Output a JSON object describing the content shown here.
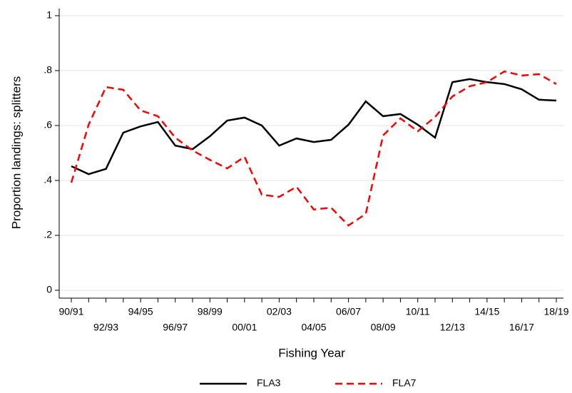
{
  "chart_data": {
    "type": "line",
    "x_label": "Fishing Year",
    "y_label": "Proportion landings: splitters",
    "categories": [
      "90/91",
      null,
      "92/93",
      null,
      "94/95",
      null,
      "96/97",
      null,
      "98/99",
      null,
      "00/01",
      null,
      "02/03",
      null,
      "04/05",
      null,
      "06/07",
      null,
      "08/09",
      null,
      "10/11",
      null,
      "12/13",
      null,
      "14/15",
      null,
      "16/17",
      null,
      "18/19"
    ],
    "series": [
      {
        "name": "FLA3",
        "color": "#000000",
        "line_style": "solid",
        "values": [
          0.452,
          0.423,
          0.442,
          0.574,
          0.597,
          0.613,
          0.527,
          0.514,
          0.561,
          0.618,
          0.629,
          0.6,
          0.527,
          0.553,
          0.54,
          0.548,
          0.603,
          0.688,
          0.634,
          0.642,
          0.603,
          0.556,
          0.758,
          0.769,
          0.758,
          0.751,
          0.732,
          0.694,
          0.691
        ]
      },
      {
        "name": "FLA7",
        "color": "#ff0000",
        "line_style": "dashed",
        "values": [
          0.392,
          0.603,
          0.74,
          0.73,
          0.655,
          0.634,
          0.556,
          0.509,
          0.475,
          0.444,
          0.486,
          0.348,
          0.34,
          0.377,
          0.294,
          0.301,
          0.236,
          0.278,
          0.564,
          0.626,
          0.579,
          0.631,
          0.706,
          0.743,
          0.758,
          0.797,
          0.782,
          0.787,
          0.751
        ]
      }
    ],
    "ylim": [
      0,
      1
    ],
    "yticks": [
      0,
      {
        "value": 0.2,
        "label": ".2"
      },
      {
        "value": 0.4,
        "label": ".4"
      },
      {
        "value": 0.6,
        "label": ".6"
      },
      {
        "value": 0.8,
        "label": ".8"
      },
      1
    ],
    "grid": true,
    "legend_position": "bottom"
  }
}
